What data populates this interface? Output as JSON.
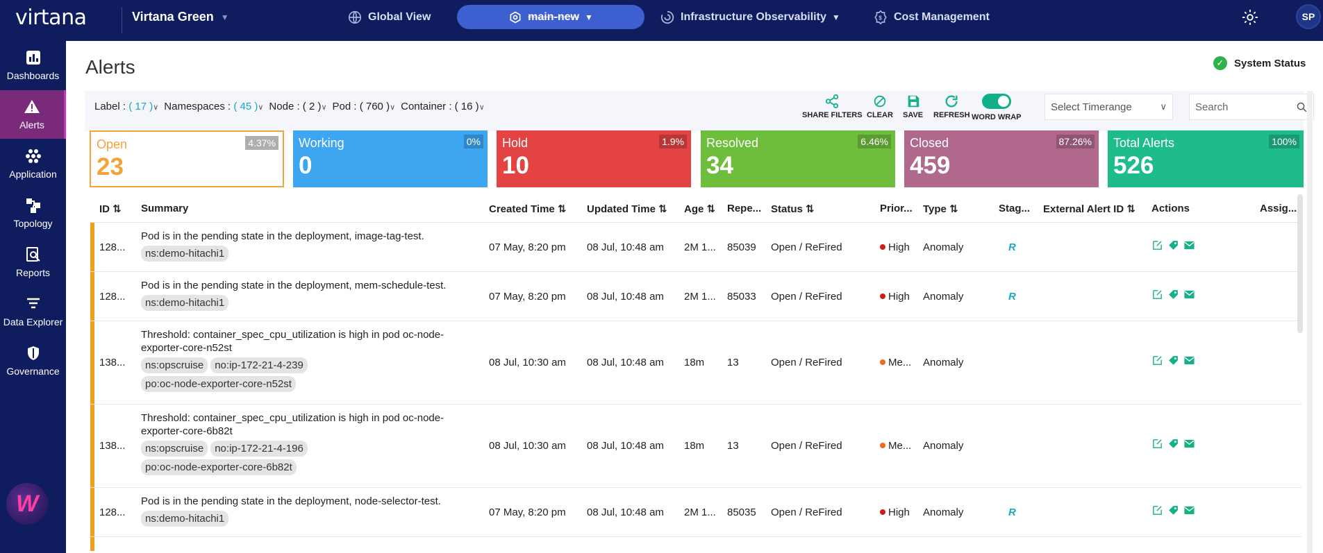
{
  "app": {
    "logo": "virtana",
    "org": "Virtana Green",
    "nav": {
      "global_view": "Global View",
      "context": "main-new",
      "infra": "Infrastructure Observability",
      "cost": "Cost Management"
    },
    "avatar": "SP"
  },
  "sidebar": {
    "items": [
      {
        "label": "Dashboards"
      },
      {
        "label": "Alerts"
      },
      {
        "label": "Application"
      },
      {
        "label": "Topology"
      },
      {
        "label": "Reports"
      },
      {
        "label": "Data Explorer"
      },
      {
        "label": "Governance"
      }
    ]
  },
  "page": {
    "title": "Alerts",
    "system_status": "System Status"
  },
  "filters": {
    "label": {
      "name": "Label :",
      "count": "( 17 )"
    },
    "namespaces": {
      "name": "Namespaces :",
      "count": "( 45 )"
    },
    "node": {
      "name": "Node : ( 2 )"
    },
    "pod": {
      "name": "Pod : ( 760 )"
    },
    "container": {
      "name": "Container : ( 16 )"
    }
  },
  "toolbar": {
    "share": "SHARE FILTERS",
    "clear": "CLEAR",
    "save": "SAVE",
    "refresh": "REFRESH",
    "wrap": "WORD WRAP",
    "timerange_placeholder": "Select Timerange",
    "search_placeholder": "Search"
  },
  "cards": [
    {
      "label": "Open",
      "value": "23",
      "pct": "4.37%",
      "color": "#ffffff"
    },
    {
      "label": "Working",
      "value": "0",
      "pct": "0%",
      "color": "#3ea5f0"
    },
    {
      "label": "Hold",
      "value": "10",
      "pct": "1.9%",
      "color": "#e34343"
    },
    {
      "label": "Resolved",
      "value": "34",
      "pct": "6.46%",
      "color": "#6fbd3c"
    },
    {
      "label": "Closed",
      "value": "459",
      "pct": "87.26%",
      "color": "#b0688c"
    },
    {
      "label": "Total Alerts",
      "value": "526",
      "pct": "100%",
      "color": "#1ebb8c"
    }
  ],
  "table": {
    "headers": {
      "id": "ID",
      "summary": "Summary",
      "created": "Created Time",
      "updated": "Updated Time",
      "age": "Age",
      "repeat": "Repe...",
      "status": "Status",
      "priority": "Prior...",
      "type": "Type",
      "stage": "Stag...",
      "external": "External Alert ID",
      "actions": "Actions",
      "assignee": "Assig..."
    },
    "rows": [
      {
        "id": "128...",
        "summary": "Pod is in the pending state in the deployment, image-tag-test.",
        "tags": [
          "ns:demo-hitachi1"
        ],
        "created": "07 May, 8:20 pm",
        "updated": "08 Jul, 10:48 am",
        "age": "2M 1...",
        "repeat": "85039",
        "status": "Open / ReFired",
        "priority": "High",
        "prio_color": "#d11a1a",
        "type": "Anomaly",
        "stage": "R"
      },
      {
        "id": "128...",
        "summary": "Pod is in the pending state in the deployment, mem-schedule-test.",
        "tags": [
          "ns:demo-hitachi1"
        ],
        "created": "07 May, 8:20 pm",
        "updated": "08 Jul, 10:48 am",
        "age": "2M 1...",
        "repeat": "85033",
        "status": "Open / ReFired",
        "priority": "High",
        "prio_color": "#d11a1a",
        "type": "Anomaly",
        "stage": "R"
      },
      {
        "id": "138...",
        "summary": "Threshold: container_spec_cpu_utilization is high in pod oc-node-exporter-core-n52st",
        "tags": [
          "ns:opscruise",
          "no:ip-172-21-4-239",
          "po:oc-node-exporter-core-n52st"
        ],
        "created": "08 Jul, 10:30 am",
        "updated": "08 Jul, 10:48 am",
        "age": "18m",
        "repeat": "13",
        "status": "Open / ReFired",
        "priority": "Me...",
        "prio_color": "#f06a1d",
        "type": "Anomaly",
        "stage": ""
      },
      {
        "id": "138...",
        "summary": "Threshold: container_spec_cpu_utilization is high in pod oc-node-exporter-core-6b82t",
        "tags": [
          "ns:opscruise",
          "no:ip-172-21-4-196",
          "po:oc-node-exporter-core-6b82t"
        ],
        "created": "08 Jul, 10:30 am",
        "updated": "08 Jul, 10:48 am",
        "age": "18m",
        "repeat": "13",
        "status": "Open / ReFired",
        "priority": "Me...",
        "prio_color": "#f06a1d",
        "type": "Anomaly",
        "stage": ""
      },
      {
        "id": "128...",
        "summary": "Pod is in the pending state in the deployment, node-selector-test.",
        "tags": [
          "ns:demo-hitachi1"
        ],
        "created": "07 May, 8:20 pm",
        "updated": "08 Jul, 10:48 am",
        "age": "2M 1...",
        "repeat": "85035",
        "status": "Open / ReFired",
        "priority": "High",
        "prio_color": "#d11a1a",
        "type": "Anomaly",
        "stage": "R"
      }
    ]
  }
}
